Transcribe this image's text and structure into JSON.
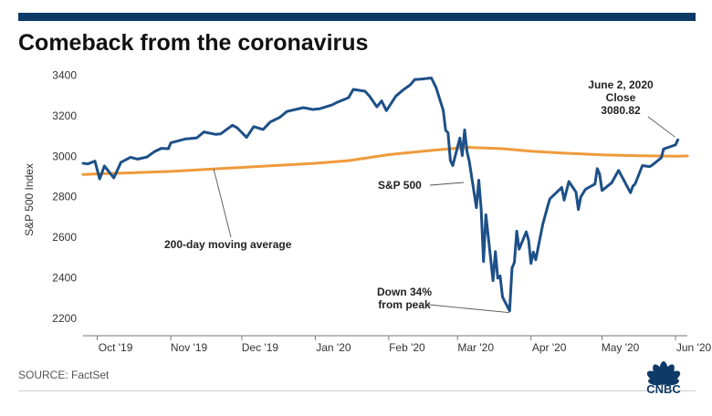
{
  "title": "Comeback from the coronavirus",
  "source": "SOURCE: FactSet",
  "logo_text": "CNBC",
  "colors": {
    "sp500": "#1d5088",
    "ma200": "#ef9a3c",
    "topbar": "#0e3a67",
    "axis": "#666666",
    "text": "#222222"
  },
  "chart_data": {
    "type": "line",
    "xlabel": "",
    "ylabel": "S&P 500 Index",
    "ylim": [
      2150,
      3420
    ],
    "y_ticks": [
      2200,
      2400,
      2600,
      2800,
      3000,
      3200,
      3400
    ],
    "x_range": [
      "2019-09-25",
      "2020-06-06"
    ],
    "x_ticks": [
      {
        "date": "2019-10-01",
        "label": "Oct '19"
      },
      {
        "date": "2019-11-01",
        "label": "Nov '19"
      },
      {
        "date": "2019-12-01",
        "label": "Dec '19"
      },
      {
        "date": "2020-01-01",
        "label": "Jan '20"
      },
      {
        "date": "2020-02-01",
        "label": "Feb '20"
      },
      {
        "date": "2020-03-01",
        "label": "Mar '20"
      },
      {
        "date": "2020-04-01",
        "label": "Apr '20"
      },
      {
        "date": "2020-05-01",
        "label": "May '20"
      },
      {
        "date": "2020-06-01",
        "label": "Jun '20"
      }
    ],
    "grid": false,
    "series": [
      {
        "name": "S&P 500",
        "color": "#1d5088",
        "points": [
          [
            "2019-09-25",
            2965
          ],
          [
            "2019-09-27",
            2962
          ],
          [
            "2019-09-30",
            2976
          ],
          [
            "2019-10-02",
            2888
          ],
          [
            "2019-10-04",
            2952
          ],
          [
            "2019-10-08",
            2893
          ],
          [
            "2019-10-11",
            2970
          ],
          [
            "2019-10-15",
            2995
          ],
          [
            "2019-10-18",
            2986
          ],
          [
            "2019-10-22",
            2996
          ],
          [
            "2019-10-25",
            3022
          ],
          [
            "2019-10-28",
            3039
          ],
          [
            "2019-10-31",
            3037
          ],
          [
            "2019-11-01",
            3066
          ],
          [
            "2019-11-07",
            3085
          ],
          [
            "2019-11-12",
            3091
          ],
          [
            "2019-11-15",
            3120
          ],
          [
            "2019-11-20",
            3108
          ],
          [
            "2019-11-22",
            3110
          ],
          [
            "2019-11-27",
            3153
          ],
          [
            "2019-11-29",
            3141
          ],
          [
            "2019-12-03",
            3093
          ],
          [
            "2019-12-06",
            3146
          ],
          [
            "2019-12-10",
            3132
          ],
          [
            "2019-12-13",
            3169
          ],
          [
            "2019-12-17",
            3192
          ],
          [
            "2019-12-20",
            3221
          ],
          [
            "2019-12-27",
            3240
          ],
          [
            "2019-12-31",
            3231
          ],
          [
            "2020-01-03",
            3235
          ],
          [
            "2020-01-08",
            3253
          ],
          [
            "2020-01-10",
            3265
          ],
          [
            "2020-01-15",
            3289
          ],
          [
            "2020-01-17",
            3330
          ],
          [
            "2020-01-22",
            3321
          ],
          [
            "2020-01-24",
            3295
          ],
          [
            "2020-01-27",
            3244
          ],
          [
            "2020-01-29",
            3273
          ],
          [
            "2020-01-31",
            3225
          ],
          [
            "2020-02-04",
            3297
          ],
          [
            "2020-02-07",
            3327
          ],
          [
            "2020-02-10",
            3352
          ],
          [
            "2020-02-12",
            3379
          ],
          [
            "2020-02-14",
            3380
          ],
          [
            "2020-02-19",
            3386
          ],
          [
            "2020-02-21",
            3338
          ],
          [
            "2020-02-24",
            3226
          ],
          [
            "2020-02-25",
            3128
          ],
          [
            "2020-02-26",
            3116
          ],
          [
            "2020-02-27",
            2979
          ],
          [
            "2020-02-28",
            2954
          ],
          [
            "2020-03-02",
            3090
          ],
          [
            "2020-03-03",
            3003
          ],
          [
            "2020-03-04",
            3130
          ],
          [
            "2020-03-05",
            3023
          ],
          [
            "2020-03-06",
            2972
          ],
          [
            "2020-03-09",
            2746
          ],
          [
            "2020-03-10",
            2882
          ],
          [
            "2020-03-11",
            2741
          ],
          [
            "2020-03-12",
            2480
          ],
          [
            "2020-03-13",
            2711
          ],
          [
            "2020-03-16",
            2386
          ],
          [
            "2020-03-17",
            2529
          ],
          [
            "2020-03-18",
            2398
          ],
          [
            "2020-03-19",
            2409
          ],
          [
            "2020-03-20",
            2305
          ],
          [
            "2020-03-23",
            2237
          ],
          [
            "2020-03-24",
            2447
          ],
          [
            "2020-03-25",
            2476
          ],
          [
            "2020-03-26",
            2630
          ],
          [
            "2020-03-27",
            2541
          ],
          [
            "2020-03-30",
            2627
          ],
          [
            "2020-03-31",
            2585
          ],
          [
            "2020-04-01",
            2471
          ],
          [
            "2020-04-02",
            2527
          ],
          [
            "2020-04-03",
            2489
          ],
          [
            "2020-04-06",
            2664
          ],
          [
            "2020-04-08",
            2750
          ],
          [
            "2020-04-09",
            2790
          ],
          [
            "2020-04-14",
            2846
          ],
          [
            "2020-04-15",
            2783
          ],
          [
            "2020-04-17",
            2875
          ],
          [
            "2020-04-20",
            2823
          ],
          [
            "2020-04-21",
            2737
          ],
          [
            "2020-04-22",
            2799
          ],
          [
            "2020-04-24",
            2837
          ],
          [
            "2020-04-28",
            2863
          ],
          [
            "2020-04-29",
            2939
          ],
          [
            "2020-04-30",
            2912
          ],
          [
            "2020-05-01",
            2831
          ],
          [
            "2020-05-05",
            2868
          ],
          [
            "2020-05-08",
            2930
          ],
          [
            "2020-05-13",
            2820
          ],
          [
            "2020-05-14",
            2852
          ],
          [
            "2020-05-15",
            2864
          ],
          [
            "2020-05-18",
            2954
          ],
          [
            "2020-05-21",
            2949
          ],
          [
            "2020-05-22",
            2955
          ],
          [
            "2020-05-26",
            2992
          ],
          [
            "2020-05-27",
            3036
          ],
          [
            "2020-05-29",
            3044
          ],
          [
            "2020-06-01",
            3056
          ],
          [
            "2020-06-02",
            3080.82
          ]
        ]
      },
      {
        "name": "200-day moving average",
        "color": "#ef9a3c",
        "points": [
          [
            "2019-09-25",
            2910
          ],
          [
            "2019-11-01",
            2925
          ],
          [
            "2019-12-01",
            2945
          ],
          [
            "2020-01-01",
            2965
          ],
          [
            "2020-01-15",
            2978
          ],
          [
            "2020-02-01",
            3008
          ],
          [
            "2020-02-20",
            3030
          ],
          [
            "2020-03-05",
            3044
          ],
          [
            "2020-03-20",
            3037
          ],
          [
            "2020-04-01",
            3025
          ],
          [
            "2020-04-15",
            3015
          ],
          [
            "2020-05-01",
            3007
          ],
          [
            "2020-05-15",
            3003
          ],
          [
            "2020-06-01",
            3000
          ],
          [
            "2020-06-06",
            3001
          ]
        ]
      }
    ],
    "annotations": [
      {
        "id": "june",
        "lines": [
          "June 2, 2020",
          "Close",
          "3080.82"
        ],
        "date": "2020-06-02",
        "value": 3080.82
      },
      {
        "id": "sp500",
        "lines": [
          "S&P 500"
        ],
        "date": "2020-03-02",
        "value": 2885
      },
      {
        "id": "ma",
        "lines": [
          "200-day moving average"
        ],
        "date": "2019-11-28",
        "value": 2938
      },
      {
        "id": "down",
        "lines": [
          "Down 34%",
          "from peak"
        ],
        "date": "2020-03-23",
        "value": 2237
      }
    ]
  }
}
